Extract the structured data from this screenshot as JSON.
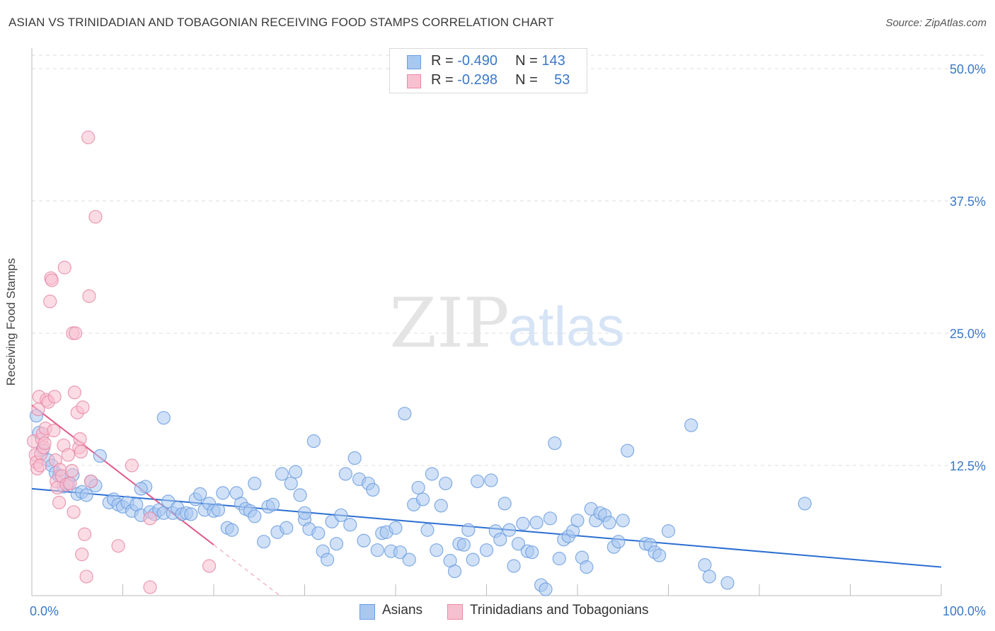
{
  "title": "ASIAN VS TRINIDADIAN AND TOBAGONIAN RECEIVING FOOD STAMPS CORRELATION CHART",
  "source": "Source: ZipAtlas.com",
  "watermark": {
    "zip": "ZIP",
    "atlas": "atlas"
  },
  "legend": {
    "rows": [
      {
        "r_label": "R =",
        "r_value": "-0.490",
        "n_label": "N =",
        "n_value": "143",
        "color": "#a9c8f0",
        "border": "#6d9de0"
      },
      {
        "r_label": "R =",
        "r_value": "-0.298",
        "n_label": "N =",
        "n_value": "53",
        "color": "#f7c0d0",
        "border": "#e88aa8"
      }
    ]
  },
  "bottom_legend": [
    {
      "label": "Asians",
      "color": "#a9c8f0",
      "border": "#6d9de0"
    },
    {
      "label": "Trinidadians and Tobagonians",
      "color": "#f7c0d0",
      "border": "#e88aa8"
    }
  ],
  "chart_data": {
    "type": "scatter",
    "title": "ASIAN VS TRINIDADIAN AND TOBAGONIAN RECEIVING FOOD STAMPS CORRELATION CHART",
    "xlabel": "",
    "ylabel": "Receiving Food Stamps",
    "xlim": [
      0,
      100
    ],
    "ylim": [
      0,
      50
    ],
    "x_tick_labels": {
      "left": "0.0%",
      "right": "100.0%"
    },
    "y_ticks": [
      {
        "value": 50,
        "label": "50.0%"
      },
      {
        "value": 37.5,
        "label": "37.5%"
      },
      {
        "value": 25,
        "label": "25.0%"
      },
      {
        "value": 12.5,
        "label": "12.5%"
      }
    ],
    "grid": "horizontal dashed",
    "colors": {
      "asians": "#6d9de0",
      "asians_fill": "#a9c8f0",
      "trini": "#e88aa8",
      "trini_fill": "#f7c0d0",
      "asians_line": "#2b6fd1",
      "trini_line": "#e05a8a",
      "tick_label": "#3b78c8"
    },
    "series": [
      {
        "name": "Asians",
        "trend": {
          "x": [
            0,
            100
          ],
          "y": [
            10.3,
            2.9
          ]
        },
        "points": [
          [
            0.5,
            17.2
          ],
          [
            0.8,
            15.6
          ],
          [
            1.2,
            14.0
          ],
          [
            1.8,
            13.0
          ],
          [
            2.2,
            12.5
          ],
          [
            2.6,
            11.8
          ],
          [
            3.0,
            11.5
          ],
          [
            3.5,
            10.5
          ],
          [
            4.0,
            10.8
          ],
          [
            4.5,
            11.6
          ],
          [
            5.0,
            9.8
          ],
          [
            5.5,
            10.0
          ],
          [
            6.0,
            9.7
          ],
          [
            6.5,
            11.0
          ],
          [
            7.0,
            10.6
          ],
          [
            7.5,
            13.4
          ],
          [
            8.5,
            9.0
          ],
          [
            9.0,
            9.3
          ],
          [
            9.5,
            8.8
          ],
          [
            10.0,
            8.6
          ],
          [
            10.5,
            9.0
          ],
          [
            11.0,
            8.2
          ],
          [
            11.5,
            8.8
          ],
          [
            12.0,
            7.8
          ],
          [
            12.5,
            10.5
          ],
          [
            13.0,
            8.1
          ],
          [
            13.5,
            7.9
          ],
          [
            14.0,
            8.3
          ],
          [
            14.5,
            8.0
          ],
          [
            15.0,
            9.1
          ],
          [
            14.5,
            17.0
          ],
          [
            15.5,
            8.0
          ],
          [
            16.0,
            8.5
          ],
          [
            16.5,
            7.9
          ],
          [
            17.0,
            8.0
          ],
          [
            17.5,
            7.9
          ],
          [
            18.0,
            9.3
          ],
          [
            18.5,
            9.8
          ],
          [
            19.0,
            8.3
          ],
          [
            19.5,
            8.9
          ],
          [
            20.0,
            8.2
          ],
          [
            20.5,
            8.3
          ],
          [
            21.0,
            9.9
          ],
          [
            21.5,
            6.6
          ],
          [
            22.0,
            6.4
          ],
          [
            22.5,
            9.9
          ],
          [
            23.0,
            8.9
          ],
          [
            23.5,
            8.4
          ],
          [
            24.0,
            8.2
          ],
          [
            24.5,
            7.7
          ],
          [
            24.5,
            10.8
          ],
          [
            25.5,
            5.3
          ],
          [
            26.0,
            8.6
          ],
          [
            26.5,
            8.8
          ],
          [
            27.0,
            6.2
          ],
          [
            27.5,
            11.7
          ],
          [
            28.0,
            6.6
          ],
          [
            28.5,
            10.8
          ],
          [
            29.0,
            11.9
          ],
          [
            29.5,
            9.7
          ],
          [
            30.0,
            7.4
          ],
          [
            30.5,
            6.5
          ],
          [
            31.0,
            14.8
          ],
          [
            31.5,
            6.1
          ],
          [
            32.0,
            4.4
          ],
          [
            32.5,
            3.6
          ],
          [
            33.0,
            7.2
          ],
          [
            33.5,
            5.1
          ],
          [
            34.0,
            7.8
          ],
          [
            34.5,
            11.7
          ],
          [
            35.0,
            6.9
          ],
          [
            35.5,
            13.2
          ],
          [
            36.0,
            11.2
          ],
          [
            36.5,
            5.4
          ],
          [
            37.0,
            10.8
          ],
          [
            37.5,
            10.2
          ],
          [
            38.0,
            4.5
          ],
          [
            38.5,
            6.1
          ],
          [
            39.0,
            6.2
          ],
          [
            39.5,
            4.4
          ],
          [
            40.0,
            6.6
          ],
          [
            40.5,
            4.3
          ],
          [
            41.0,
            17.4
          ],
          [
            41.5,
            3.6
          ],
          [
            42.0,
            8.8
          ],
          [
            42.5,
            10.4
          ],
          [
            43.0,
            9.3
          ],
          [
            43.5,
            6.4
          ],
          [
            44.0,
            11.7
          ],
          [
            44.5,
            4.5
          ],
          [
            45.0,
            8.7
          ],
          [
            45.5,
            10.8
          ],
          [
            46.0,
            3.5
          ],
          [
            46.5,
            2.5
          ],
          [
            47.0,
            5.1
          ],
          [
            47.5,
            5.0
          ],
          [
            48.0,
            6.4
          ],
          [
            48.5,
            3.6
          ],
          [
            49.0,
            11.0
          ],
          [
            50.0,
            4.5
          ],
          [
            50.5,
            11.1
          ],
          [
            51.0,
            6.3
          ],
          [
            51.5,
            5.5
          ],
          [
            52.0,
            8.9
          ],
          [
            52.5,
            6.4
          ],
          [
            53.0,
            3.0
          ],
          [
            53.5,
            5.1
          ],
          [
            54.0,
            7.0
          ],
          [
            54.5,
            4.4
          ],
          [
            55.0,
            4.3
          ],
          [
            55.5,
            7.1
          ],
          [
            56.0,
            1.2
          ],
          [
            56.5,
            0.8
          ],
          [
            57.0,
            7.5
          ],
          [
            57.5,
            14.6
          ],
          [
            58.0,
            3.7
          ],
          [
            58.5,
            5.5
          ],
          [
            59.0,
            5.8
          ],
          [
            59.5,
            6.3
          ],
          [
            60.0,
            7.3
          ],
          [
            60.5,
            3.8
          ],
          [
            61.0,
            2.9
          ],
          [
            61.5,
            8.4
          ],
          [
            62.0,
            7.3
          ],
          [
            62.5,
            8.0
          ],
          [
            63.0,
            7.8
          ],
          [
            63.5,
            7.1
          ],
          [
            64.0,
            4.8
          ],
          [
            64.5,
            5.3
          ],
          [
            65.0,
            7.3
          ],
          [
            65.5,
            13.9
          ],
          [
            67.5,
            5.1
          ],
          [
            68.0,
            5.0
          ],
          [
            68.5,
            4.3
          ],
          [
            69.0,
            4.0
          ],
          [
            70.0,
            6.3
          ],
          [
            72.5,
            16.3
          ],
          [
            74.0,
            3.1
          ],
          [
            74.5,
            2.0
          ],
          [
            76.5,
            1.4
          ],
          [
            85.0,
            8.9
          ],
          [
            12.0,
            10.3
          ],
          [
            30.0,
            8.0
          ]
        ]
      },
      {
        "name": "Trinidadians and Tobagonians",
        "trend": {
          "x": [
            0,
            20
          ],
          "y": [
            18.2,
            5.0
          ]
        },
        "points": [
          [
            0.2,
            14.8
          ],
          [
            0.4,
            13.5
          ],
          [
            0.5,
            12.8
          ],
          [
            0.6,
            12.2
          ],
          [
            0.7,
            17.8
          ],
          [
            0.8,
            19.0
          ],
          [
            1.0,
            13.6
          ],
          [
            1.1,
            15.0
          ],
          [
            1.2,
            15.5
          ],
          [
            1.3,
            14.2
          ],
          [
            1.5,
            16.0
          ],
          [
            1.6,
            18.7
          ],
          [
            1.8,
            18.5
          ],
          [
            2.0,
            28.0
          ],
          [
            2.1,
            30.2
          ],
          [
            2.2,
            30.0
          ],
          [
            2.4,
            15.8
          ],
          [
            2.5,
            19.0
          ],
          [
            2.6,
            13.0
          ],
          [
            2.7,
            11.0
          ],
          [
            2.8,
            10.4
          ],
          [
            3.0,
            9.0
          ],
          [
            3.1,
            12.1
          ],
          [
            3.3,
            11.5
          ],
          [
            3.5,
            14.4
          ],
          [
            3.6,
            31.2
          ],
          [
            3.8,
            10.7
          ],
          [
            4.0,
            13.5
          ],
          [
            4.2,
            10.8
          ],
          [
            4.4,
            12.0
          ],
          [
            4.5,
            25.0
          ],
          [
            4.6,
            8.1
          ],
          [
            4.7,
            19.4
          ],
          [
            4.8,
            25.0
          ],
          [
            5.0,
            17.5
          ],
          [
            5.2,
            14.2
          ],
          [
            5.3,
            15.0
          ],
          [
            5.4,
            13.8
          ],
          [
            5.5,
            4.1
          ],
          [
            5.6,
            18.0
          ],
          [
            5.8,
            6.0
          ],
          [
            6.0,
            2.0
          ],
          [
            6.3,
            28.5
          ],
          [
            6.5,
            11.0
          ],
          [
            6.2,
            43.5
          ],
          [
            7.0,
            36.0
          ],
          [
            9.5,
            4.9
          ],
          [
            11.0,
            12.5
          ],
          [
            13.0,
            7.5
          ],
          [
            13.0,
            1.0
          ],
          [
            19.5,
            3.0
          ],
          [
            0.9,
            12.5
          ],
          [
            1.4,
            14.6
          ]
        ]
      }
    ]
  }
}
